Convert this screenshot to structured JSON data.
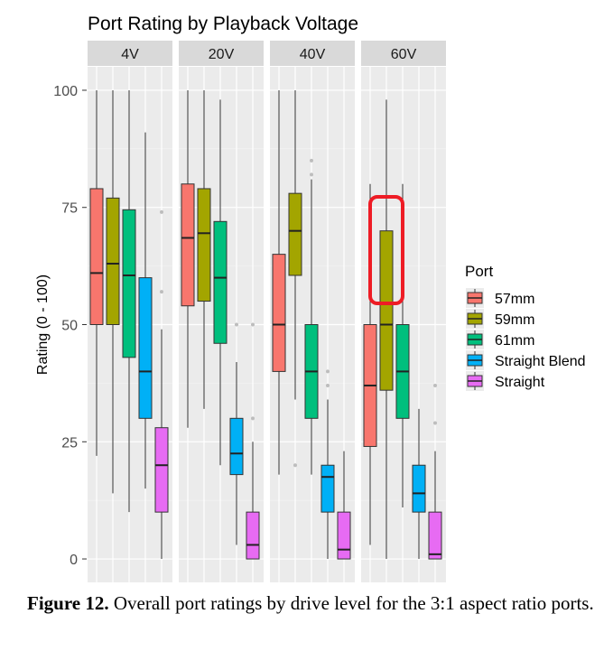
{
  "chart_data": {
    "type": "boxplot",
    "title": "Port Rating by Playback Voltage",
    "ylabel": "Rating (0 - 100)",
    "xlabel": "",
    "ylim": [
      -5,
      105
    ],
    "yticks": [
      0,
      25,
      50,
      75,
      100
    ],
    "grid": true,
    "facets": [
      "4V",
      "20V",
      "40V",
      "60V"
    ],
    "legend": {
      "title": "Port",
      "placement": "right",
      "entries": [
        "57mm",
        "59mm",
        "61mm",
        "Straight Blend",
        "Straight"
      ]
    },
    "colors": {
      "57mm": "#F8766D",
      "59mm": "#A3A500",
      "61mm": "#00BF7D",
      "Straight Blend": "#00B0F6",
      "Straight": "#E76BF3"
    },
    "data": {
      "4V": [
        {
          "port": "57mm",
          "min": 22,
          "q1": 50,
          "median": 61,
          "q3": 79,
          "max": 100,
          "outliers": []
        },
        {
          "port": "59mm",
          "min": 14,
          "q1": 50,
          "median": 63,
          "q3": 77,
          "max": 100,
          "outliers": []
        },
        {
          "port": "61mm",
          "min": 10,
          "q1": 43,
          "median": 60.5,
          "q3": 74.5,
          "max": 100,
          "outliers": []
        },
        {
          "port": "Straight Blend",
          "min": 15,
          "q1": 30,
          "median": 40,
          "q3": 60,
          "max": 91,
          "outliers": []
        },
        {
          "port": "Straight",
          "min": 0,
          "q1": 10,
          "median": 20,
          "q3": 28,
          "max": 49,
          "outliers": [
            57,
            74
          ]
        }
      ],
      "20V": [
        {
          "port": "57mm",
          "min": 28,
          "q1": 54,
          "median": 68.5,
          "q3": 80,
          "max": 100,
          "outliers": []
        },
        {
          "port": "59mm",
          "min": 32,
          "q1": 55,
          "median": 69.5,
          "q3": 79,
          "max": 100,
          "outliers": []
        },
        {
          "port": "61mm",
          "min": 20,
          "q1": 46,
          "median": 60,
          "q3": 72,
          "max": 98,
          "outliers": []
        },
        {
          "port": "Straight Blend",
          "min": 3,
          "q1": 18,
          "median": 22.5,
          "q3": 30,
          "max": 42,
          "outliers": [
            50
          ]
        },
        {
          "port": "Straight",
          "min": 0,
          "q1": 0,
          "median": 3,
          "q3": 10,
          "max": 25,
          "outliers": [
            30,
            50
          ]
        }
      ],
      "40V": [
        {
          "port": "57mm",
          "min": 18,
          "q1": 40,
          "median": 50,
          "q3": 65,
          "max": 100,
          "outliers": []
        },
        {
          "port": "59mm",
          "min": 34,
          "q1": 60.5,
          "median": 70,
          "q3": 78,
          "max": 100,
          "outliers": [
            20
          ]
        },
        {
          "port": "61mm",
          "min": 18,
          "q1": 30,
          "median": 40,
          "q3": 50,
          "max": 81,
          "outliers": [
            82,
            85
          ]
        },
        {
          "port": "Straight Blend",
          "min": 0,
          "q1": 10,
          "median": 17.5,
          "q3": 20,
          "max": 34,
          "outliers": [
            37,
            40
          ]
        },
        {
          "port": "Straight",
          "min": 0,
          "q1": 0,
          "median": 2,
          "q3": 10,
          "max": 23,
          "outliers": []
        }
      ],
      "60V": [
        {
          "port": "57mm",
          "min": 3,
          "q1": 24,
          "median": 37,
          "q3": 50,
          "max": 80,
          "outliers": []
        },
        {
          "port": "59mm",
          "min": 0,
          "q1": 36,
          "median": 50,
          "q3": 70,
          "max": 98,
          "outliers": []
        },
        {
          "port": "61mm",
          "min": 11,
          "q1": 30,
          "median": 40,
          "q3": 50,
          "max": 80,
          "outliers": []
        },
        {
          "port": "Straight Blend",
          "min": 0,
          "q1": 10,
          "median": 14,
          "q3": 20,
          "max": 32,
          "outliers": []
        },
        {
          "port": "Straight",
          "min": 0,
          "q1": 0,
          "median": 1,
          "q3": 10,
          "max": 23,
          "outliers": [
            29,
            37
          ]
        }
      ]
    },
    "annotation": {
      "shape": "red rounded outline",
      "facet": "60V",
      "port": "59mm",
      "color": "#EE1C25"
    }
  },
  "caption": {
    "label": "Figure 12.",
    "text": " Overall port ratings by drive level for the 3:1 aspect ratio ports."
  }
}
